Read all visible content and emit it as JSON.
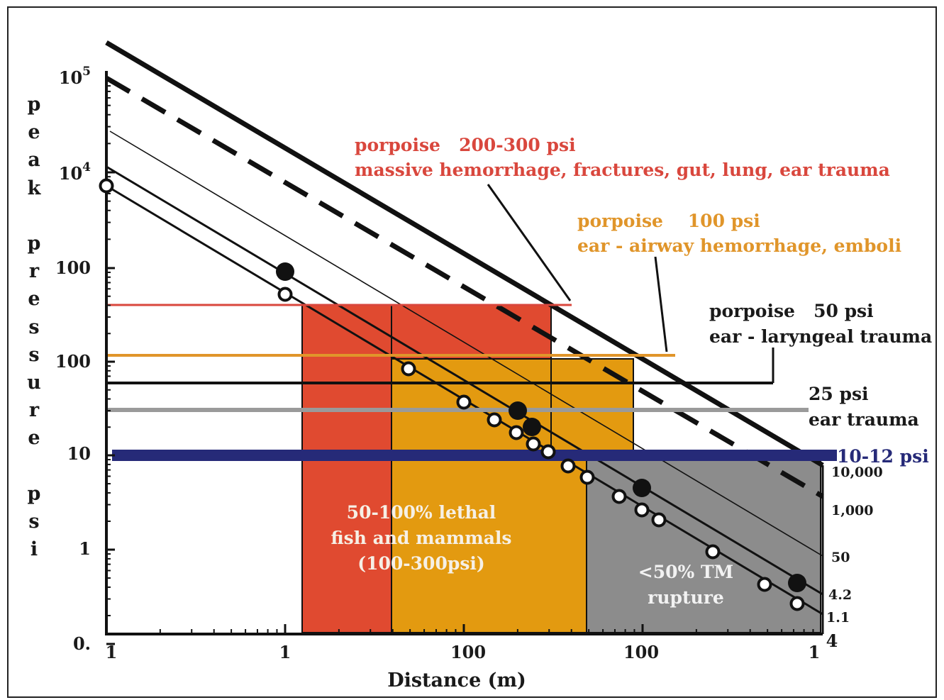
{
  "chart_data": {
    "type": "line",
    "x_axis": {
      "label": "Distance (m)",
      "scale": "log",
      "tick_labels": [
        "1",
        "1",
        "100",
        "100",
        "1",
        "4"
      ]
    },
    "y_axis": {
      "label_letters": [
        "p",
        "e",
        "a",
        "k",
        "",
        "p",
        "r",
        "e",
        "s",
        "s",
        "u",
        "r",
        "e",
        "",
        "p",
        "s",
        "i"
      ],
      "scale": "log",
      "tick_labels": [
        {
          "base": "10",
          "exp": "5"
        },
        {
          "base": "10",
          "exp": "4"
        },
        {
          "base": "100",
          "exp": ""
        },
        {
          "base": "100",
          "exp": ""
        },
        {
          "base": "10",
          "exp": ""
        },
        {
          "base": "1",
          "exp": ""
        },
        {
          "base": "0.",
          "exp": ""
        }
      ]
    },
    "thresholds": [
      {
        "psi": 300,
        "color": "#d9473d",
        "title": "porpoise   200-300 psi",
        "subtitle": "massive hemorrhage, fractures, gut, lung, ear trauma"
      },
      {
        "psi": 100,
        "color": "#e0952a",
        "title": "porpoise    100 psi",
        "subtitle": "ear - airway hemorrhage, emboli"
      },
      {
        "psi": 50,
        "color": "#111111",
        "title": "porpoise   50 psi",
        "subtitle": "ear - laryngeal trauma"
      },
      {
        "psi": 25,
        "color": "#9a9a9a",
        "title": "25 psi",
        "subtitle": "ear trauma"
      },
      {
        "psi": 11,
        "color": "#262a78",
        "title": "10-12 psi",
        "subtitle": ""
      }
    ],
    "regions": [
      {
        "id": "red",
        "color": "#e04a30",
        "label": [
          "50-100% lethal",
          "fish and mammals",
          "(100-300psi)"
        ]
      },
      {
        "id": "orange",
        "color": "#e39a10",
        "label": []
      },
      {
        "id": "gray",
        "color": "#8c8c8c",
        "label": [
          "<50% TM",
          "rupture"
        ]
      }
    ],
    "charge_weight_labels": [
      "10,000",
      "1,000",
      "50",
      "4.2",
      "1.1"
    ]
  }
}
